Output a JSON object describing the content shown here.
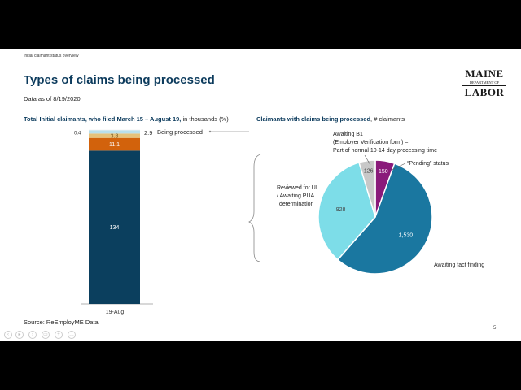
{
  "slide": {
    "header_note": "Initial claimant status overview",
    "title": "Types of claims being processed",
    "as_of": "Data as of 8/19/2020",
    "logo": {
      "line1": "MAINE",
      "line2": "DEPARTMENT OF",
      "line3": "LABOR"
    },
    "left_subtitle_bold": "Total Initial claimants, who filed March 15 – August 19,",
    "left_subtitle_rest": " in thousands (%)",
    "right_subtitle_bold": "Claimants with claims being processed",
    "right_subtitle_rest": ", # claimants",
    "source": "Source: ReEmployME Data",
    "page_number": "5",
    "colors": {
      "title": "#0b3a5c",
      "bar_main": "#0b3f5e",
      "bar_orange": "#d2620c",
      "bar_tan": "#e6c27a",
      "bar_blue": "#b9e0ec",
      "pie_dark": "#1a77a0",
      "pie_light": "#7ddde8",
      "pie_gray": "#c8c8c8",
      "pie_purple": "#8a1a7a"
    },
    "player_controls": [
      "prev-icon",
      "play-icon",
      "next-icon",
      "notes-icon",
      "zoom-icon",
      "more-icon"
    ]
  },
  "chart_data": [
    {
      "type": "bar",
      "stacked": true,
      "categories": [
        "19-Aug"
      ],
      "ylim": [
        0,
        152
      ],
      "series": [
        {
          "values": [
            134
          ],
          "label": "134",
          "color": "#0b3f5e"
        },
        {
          "values": [
            11.1
          ],
          "label": "11.1",
          "color": "#d2620c"
        },
        {
          "values": [
            3.8
          ],
          "label": "3.8",
          "color": "#e6c27a"
        },
        {
          "values": [
            2.9
          ],
          "label": "2.9",
          "color": "#b9e0ec"
        },
        {
          "values": [
            0.4
          ],
          "label": "0.4",
          "color": "#f0f0f0"
        }
      ],
      "annotation": "Being processed"
    },
    {
      "type": "pie",
      "slices": [
        {
          "label": "Awaiting fact finding",
          "value": 1530,
          "value_label": "1,530",
          "color": "#1a77a0"
        },
        {
          "label": "Reviewed for UI / Awaiting PUA determination",
          "value": 928,
          "value_label": "928",
          "color": "#7ddde8"
        },
        {
          "label": "Awaiting B1 (Employer Verification form) – Part of normal 10-14 day processing time",
          "value": 126,
          "value_label": "126",
          "color": "#c8c8c8"
        },
        {
          "label": "“Pending” status",
          "value": 150,
          "value_label": "150",
          "color": "#8a1a7a"
        }
      ],
      "callouts": {
        "b1_line1": "Awaiting B1",
        "b1_line2": "(Employer Verification form) –",
        "b1_line3": "Part of normal 10-14 day processing time",
        "pending": "“Pending” status",
        "reviewed_line1": "Reviewed for UI",
        "reviewed_line2": "/ Awaiting PUA",
        "reviewed_line3": "determination",
        "fact_finding": "Awaiting fact finding"
      }
    }
  ]
}
